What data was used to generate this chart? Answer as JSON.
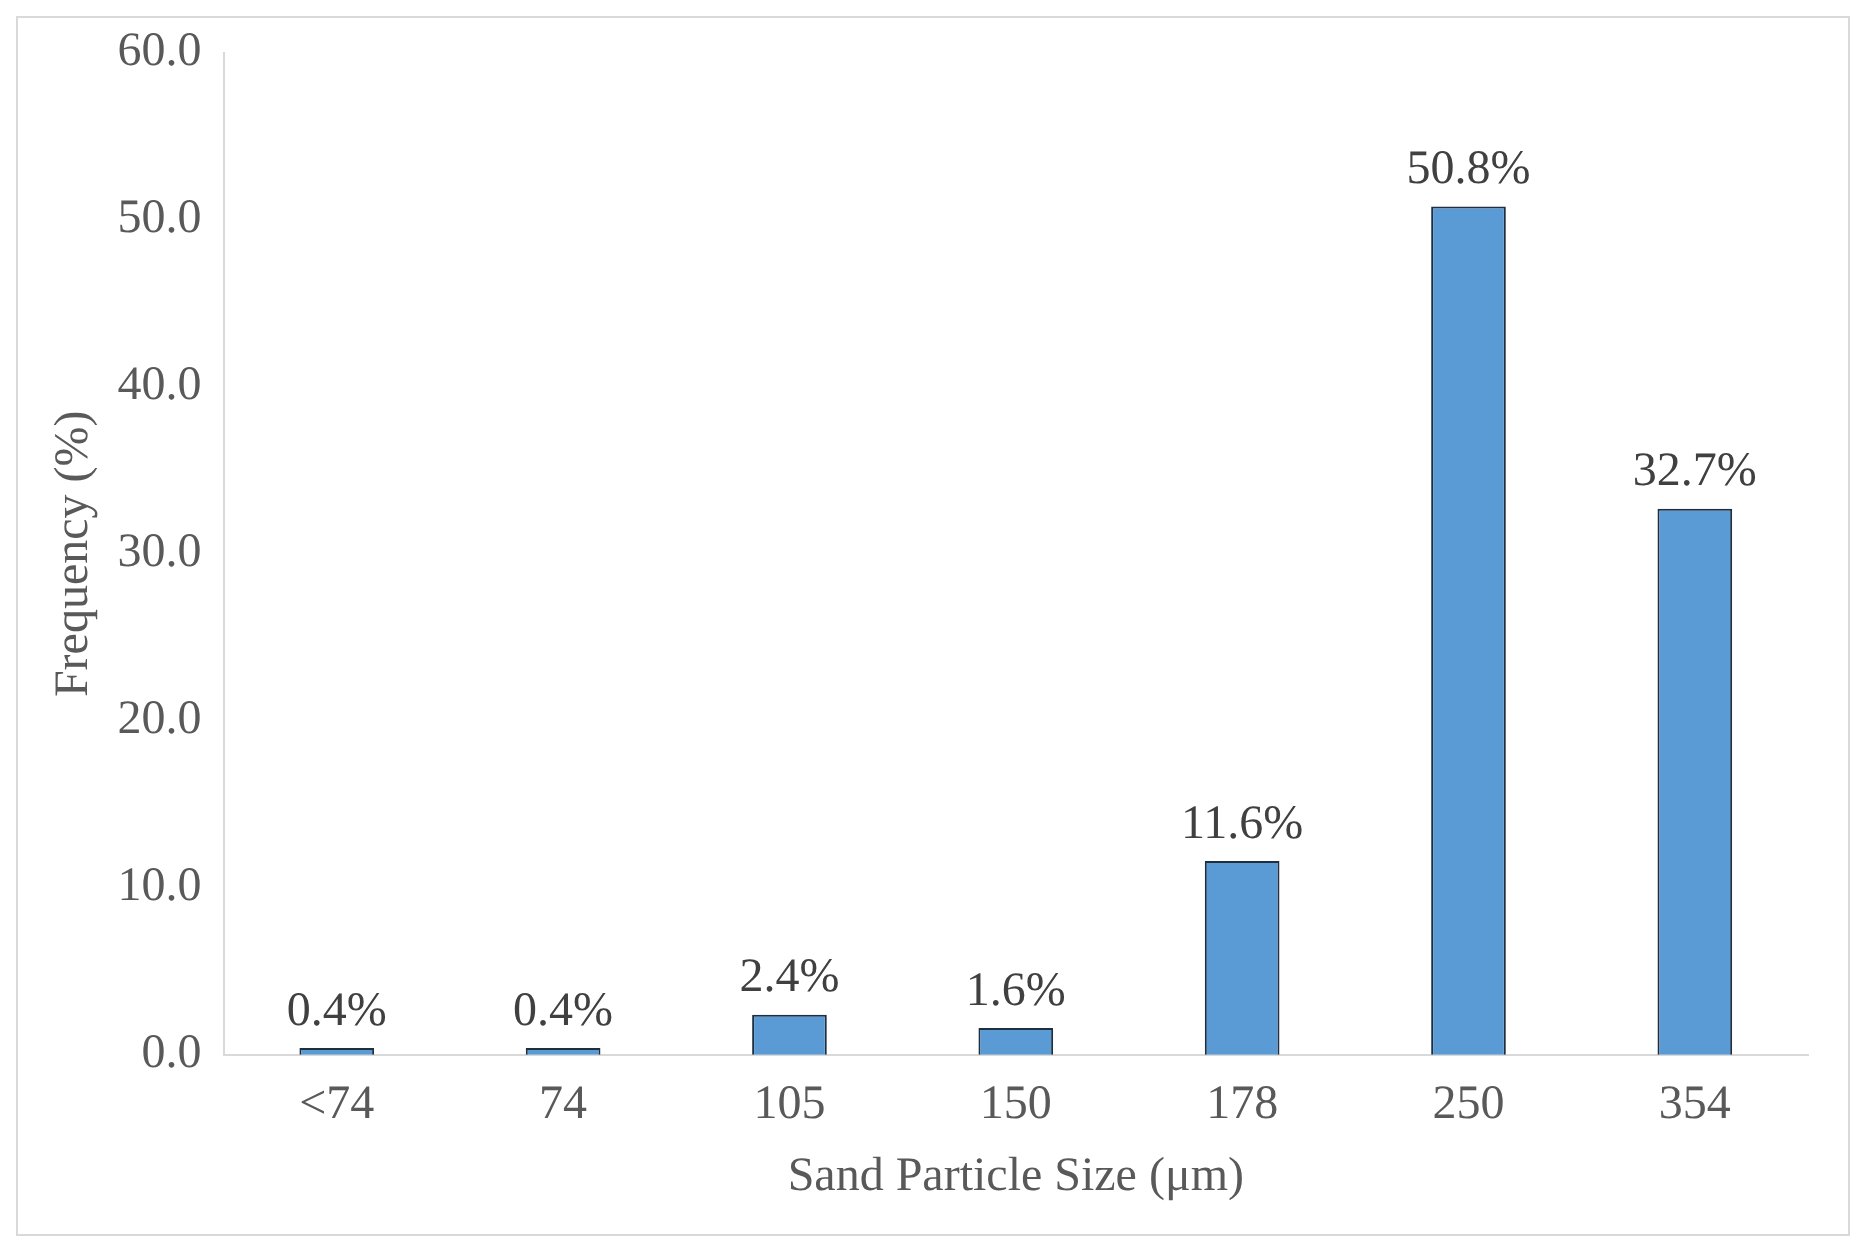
{
  "chart_data": {
    "type": "bar",
    "xlabel": "Sand Particle Size (μm)",
    "ylabel": "Frequency (%)",
    "categories": [
      "<74",
      "74",
      "105",
      "150",
      "178",
      "250",
      "354"
    ],
    "values": [
      0.4,
      0.4,
      2.4,
      1.6,
      11.6,
      50.8,
      32.7
    ],
    "value_labels": [
      "0.4%",
      "0.4%",
      "2.4%",
      "1.6%",
      "11.6%",
      "50.8%",
      "32.7%"
    ],
    "color": "#5b9bd5",
    "ylim": [
      0,
      60
    ],
    "yticks": [
      {
        "value": 0,
        "label": "0.0"
      },
      {
        "value": 10,
        "label": "10.0"
      },
      {
        "value": 20,
        "label": "20.0"
      },
      {
        "value": 30,
        "label": "30.0"
      },
      {
        "value": 40,
        "label": "40.0"
      },
      {
        "value": 50,
        "label": "50.0"
      },
      {
        "value": 60,
        "label": "60.0"
      }
    ],
    "grid": false,
    "legend": false
  }
}
